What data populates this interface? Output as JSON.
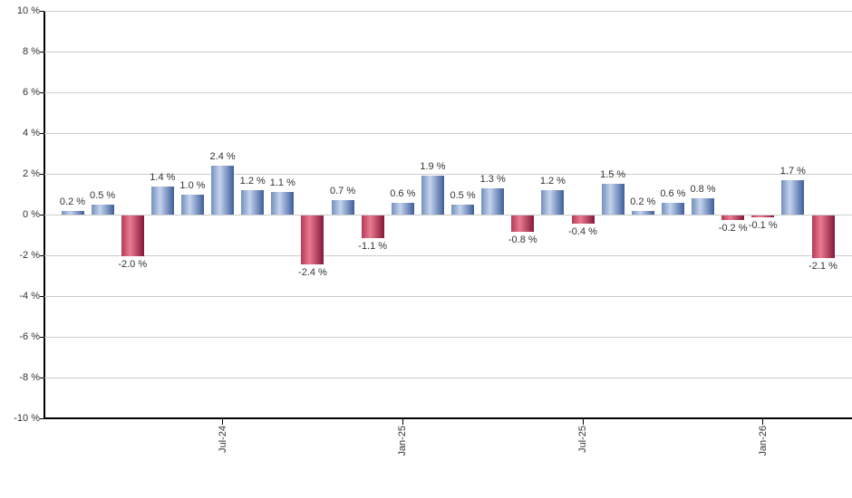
{
  "chart_data": {
    "type": "bar",
    "title": "",
    "unit": "%",
    "values": [
      0.2,
      0.5,
      -2.0,
      1.4,
      1.0,
      2.4,
      1.2,
      1.1,
      -2.4,
      0.7,
      -1.1,
      0.6,
      1.9,
      0.5,
      1.3,
      -0.8,
      1.2,
      -0.4,
      1.5,
      0.2,
      0.6,
      0.8,
      -0.2,
      -0.1,
      1.7,
      -2.1
    ],
    "labels": [
      "0.2 %",
      "0.5 %",
      "-2.0 %",
      "1.4 %",
      "1.0 %",
      "2.4 %",
      "1.2 %",
      "1.1 %",
      "-2.4 %",
      "0.7 %",
      "-1.1 %",
      "0.6 %",
      "1.9 %",
      "0.5 %",
      "1.3 %",
      "-0.8 %",
      "1.2 %",
      "-0.4 %",
      "1.5 %",
      "0.2 %",
      "0.6 %",
      "0.8 %",
      "-0.2 %",
      "-0.1 %",
      "1.7 %",
      "-2.1 %"
    ],
    "x_axis": {
      "ticks": [
        {
          "index": 5,
          "label": "Jul-24"
        },
        {
          "index": 11,
          "label": "Jan-25"
        },
        {
          "index": 17,
          "label": "Jul-25"
        },
        {
          "index": 23,
          "label": "Jan-26"
        }
      ]
    },
    "y_axis": {
      "ticks": [
        10,
        8,
        6,
        4,
        2,
        0,
        -2,
        -4,
        -6,
        -8,
        -10
      ],
      "labels": [
        "10 %",
        "8 %",
        "6 %",
        "4 %",
        "2 %",
        "0 %",
        "-2 %",
        "-4 %",
        "-6 %",
        "-8 %",
        "-10 %"
      ]
    },
    "ylim": [
      -10,
      10
    ],
    "grid": true,
    "legend": false,
    "colors": {
      "positive_left": "#7590bb",
      "positive_mid": "#c4d4ee",
      "positive_right": "#3d5d9b",
      "negative_left": "#b43a5a",
      "negative_mid": "#ea7b90",
      "negative_right": "#85173a",
      "grid": "#cccccc",
      "axis": "#000000",
      "text": "#333333",
      "background": "#ffffff"
    }
  }
}
